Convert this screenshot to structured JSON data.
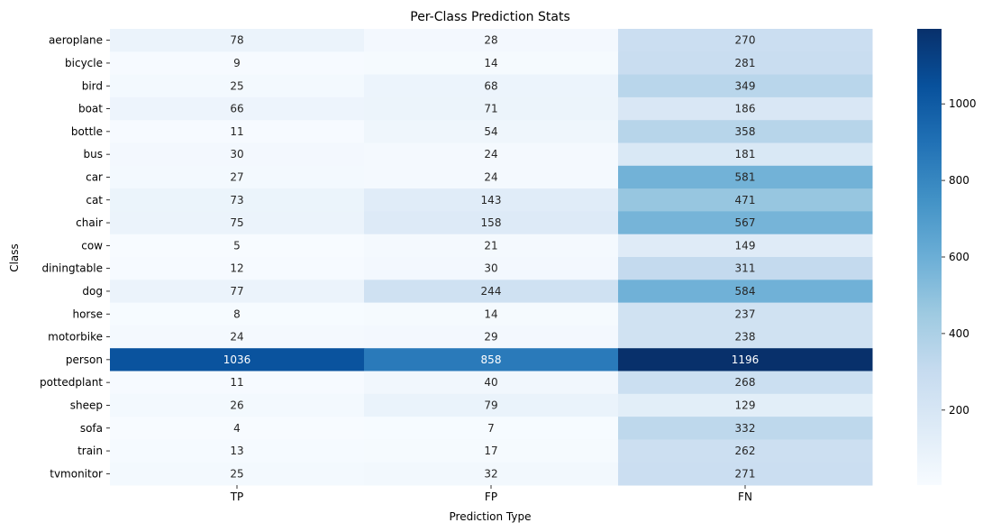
{
  "chart_data": {
    "type": "heatmap",
    "title": "Per-Class Prediction Stats",
    "xlabel": "Prediction Type",
    "ylabel": "Class",
    "columns": [
      "TP",
      "FP",
      "FN"
    ],
    "rows": [
      "aeroplane",
      "bicycle",
      "bird",
      "boat",
      "bottle",
      "bus",
      "car",
      "cat",
      "chair",
      "cow",
      "diningtable",
      "dog",
      "horse",
      "motorbike",
      "person",
      "pottedplant",
      "sheep",
      "sofa",
      "train",
      "tvmonitor"
    ],
    "values": [
      [
        78,
        28,
        270
      ],
      [
        9,
        14,
        281
      ],
      [
        25,
        68,
        349
      ],
      [
        66,
        71,
        186
      ],
      [
        11,
        54,
        358
      ],
      [
        30,
        24,
        181
      ],
      [
        27,
        24,
        581
      ],
      [
        73,
        143,
        471
      ],
      [
        75,
        158,
        567
      ],
      [
        5,
        21,
        149
      ],
      [
        12,
        30,
        311
      ],
      [
        77,
        244,
        584
      ],
      [
        8,
        14,
        237
      ],
      [
        24,
        29,
        238
      ],
      [
        1036,
        858,
        1196
      ],
      [
        11,
        40,
        268
      ],
      [
        26,
        79,
        129
      ],
      [
        4,
        7,
        332
      ],
      [
        13,
        17,
        262
      ],
      [
        25,
        32,
        271
      ]
    ],
    "colormap": "Blues",
    "colorbar": {
      "range": [
        4,
        1196
      ],
      "ticks": [
        200,
        400,
        600,
        800,
        1000
      ]
    }
  }
}
